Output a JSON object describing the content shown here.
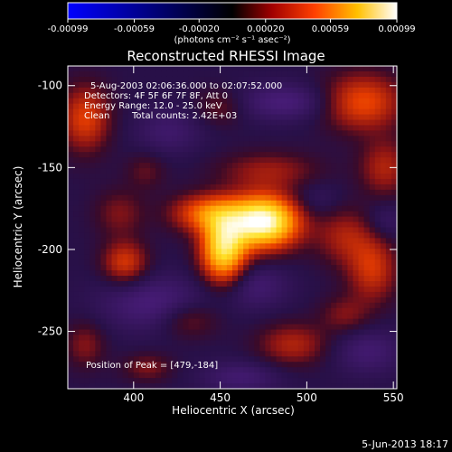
{
  "chart_data": {
    "type": "heatmap",
    "title": "Reconstructed RHESSI Image",
    "xlabel": "Heliocentric X (arcsec)",
    "ylabel": "Heliocentric Y (arcsec)",
    "xlim": [
      362,
      552
    ],
    "ylim": [
      -285,
      -88
    ],
    "x_ticks": [
      400,
      450,
      500,
      550
    ],
    "y_ticks": [
      -100,
      -150,
      -200,
      -250
    ],
    "colorbar": {
      "ticks": [
        "-0.00099",
        "-0.00059",
        "-0.00020",
        "0.00020",
        "0.00059",
        "0.00099"
      ],
      "range": [
        -0.00099,
        0.00099
      ],
      "unit_label": "(photons cm⁻² s⁻¹ asec⁻²)",
      "colormap": [
        "#0000ff",
        "#000000",
        "#ff0000",
        "#ffb000",
        "#ffffff"
      ]
    },
    "annotations": {
      "time_range": "5-Aug-2003 02:06:36.000 to 02:07:52.000",
      "detectors": "Detectors: 4F 5F 6F 7F 8F, Att 0",
      "energy_range": "Energy Range: 12.0 - 25.0 keV",
      "method": "Clean",
      "total_counts": "Total counts: 2.42E+03",
      "peak_position": "Position of Peak = [479,-184]"
    },
    "peak": {
      "x": 479,
      "y": -184
    },
    "blobs": [
      {
        "x": 475,
        "y": -183,
        "sx": 14,
        "sy": 11,
        "a": 0.00099
      },
      {
        "x": 452,
        "y": -200,
        "sx": 9,
        "sy": 14,
        "a": 0.00078
      },
      {
        "x": 442,
        "y": -178,
        "sx": 14,
        "sy": 8,
        "a": 0.00042
      },
      {
        "x": 478,
        "y": -152,
        "sx": 20,
        "sy": 8,
        "a": 0.0002
      },
      {
        "x": 532,
        "y": -110,
        "sx": 16,
        "sy": 12,
        "a": 0.00038
      },
      {
        "x": 545,
        "y": -150,
        "sx": 10,
        "sy": 12,
        "a": 0.00024
      },
      {
        "x": 522,
        "y": -192,
        "sx": 12,
        "sy": 12,
        "a": 0.00022
      },
      {
        "x": 538,
        "y": -212,
        "sx": 10,
        "sy": 14,
        "a": 0.0003
      },
      {
        "x": 372,
        "y": -120,
        "sx": 10,
        "sy": 14,
        "a": 0.00034
      },
      {
        "x": 392,
        "y": -178,
        "sx": 10,
        "sy": 10,
        "a": 0.00016
      },
      {
        "x": 395,
        "y": -208,
        "sx": 9,
        "sy": 9,
        "a": 0.00032
      },
      {
        "x": 372,
        "y": -258,
        "sx": 8,
        "sy": 10,
        "a": 0.00017
      },
      {
        "x": 408,
        "y": -272,
        "sx": 10,
        "sy": 6,
        "a": 0.00016
      },
      {
        "x": 432,
        "y": -243,
        "sx": 12,
        "sy": 8,
        "a": 0.00018
      },
      {
        "x": 492,
        "y": -258,
        "sx": 14,
        "sy": 9,
        "a": 0.00024
      },
      {
        "x": 522,
        "y": -240,
        "sx": 10,
        "sy": 8,
        "a": 0.00016
      },
      {
        "x": 450,
        "y": -113,
        "sx": 10,
        "sy": 8,
        "a": 0.00014
      },
      {
        "x": 407,
        "y": -152,
        "sx": 8,
        "sy": 8,
        "a": 0.00012
      },
      {
        "x": 488,
        "y": -110,
        "sx": 20,
        "sy": 8,
        "a": -0.0002
      },
      {
        "x": 412,
        "y": -233,
        "sx": 22,
        "sy": 12,
        "a": -0.0002
      },
      {
        "x": 470,
        "y": -222,
        "sx": 14,
        "sy": 10,
        "a": -0.00016
      },
      {
        "x": 462,
        "y": -278,
        "sx": 16,
        "sy": 7,
        "a": -0.00016
      },
      {
        "x": 535,
        "y": -262,
        "sx": 14,
        "sy": 10,
        "a": -0.00016
      },
      {
        "x": 420,
        "y": -128,
        "sx": 14,
        "sy": 10,
        "a": -0.00014
      },
      {
        "x": 505,
        "y": -170,
        "sx": 10,
        "sy": 8,
        "a": -0.0001
      },
      {
        "x": 545,
        "y": -183,
        "sx": 8,
        "sy": 8,
        "a": -0.00012
      }
    ]
  },
  "footer": {
    "date_stamp": "5-Jun-2013 18:17"
  }
}
